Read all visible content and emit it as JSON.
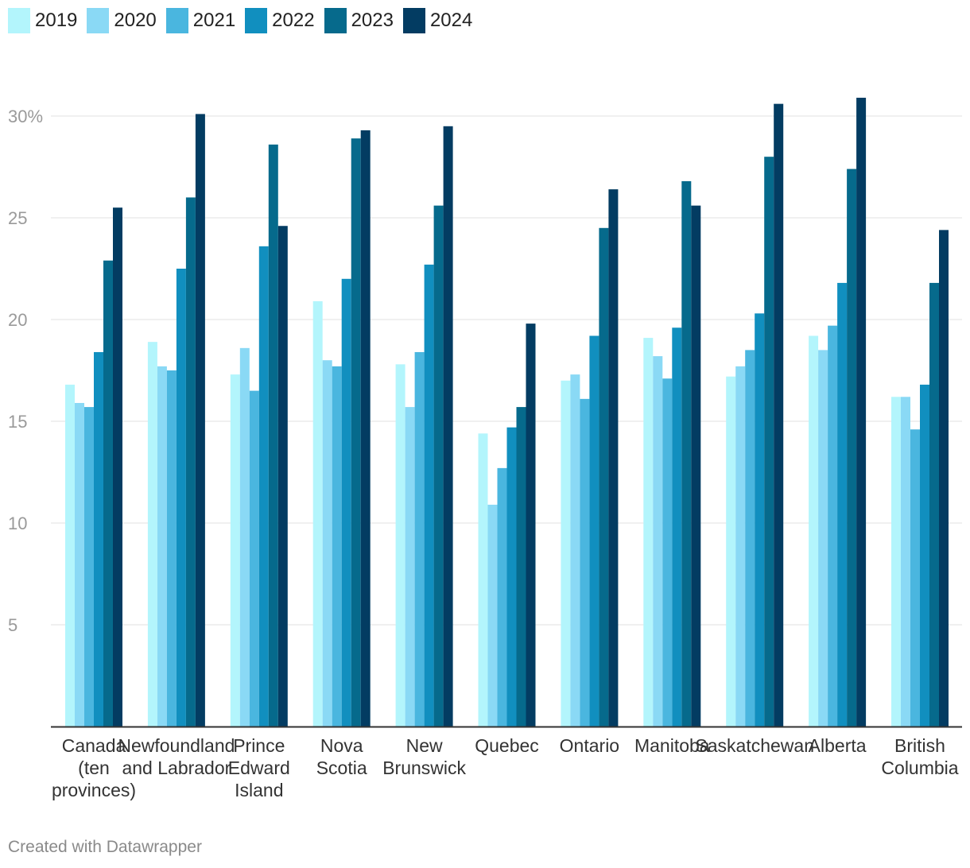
{
  "chart_data": {
    "type": "bar",
    "title": "",
    "xlabel": "",
    "ylabel": "",
    "ylim": [
      0,
      31
    ],
    "y_ticks": [
      {
        "value": 5,
        "label": "5"
      },
      {
        "value": 10,
        "label": "10"
      },
      {
        "value": 15,
        "label": "15"
      },
      {
        "value": 20,
        "label": "20"
      },
      {
        "value": 25,
        "label": "25"
      },
      {
        "value": 30,
        "label": "30%"
      }
    ],
    "categories": [
      [
        "Canada",
        "(ten",
        "provinces)"
      ],
      [
        "Newfoundland",
        "and Labrador"
      ],
      [
        "Prince",
        "Edward",
        "Island"
      ],
      [
        "Nova",
        "Scotia"
      ],
      [
        "New",
        "Brunswick"
      ],
      [
        "Quebec"
      ],
      [
        "Ontario"
      ],
      [
        "Manitoba"
      ],
      [
        "Saskatchewan"
      ],
      [
        "Alberta"
      ],
      [
        "British",
        "Columbia"
      ]
    ],
    "series": [
      {
        "name": "2019",
        "color": "#b3f5fc",
        "values": [
          16.8,
          18.9,
          17.3,
          20.9,
          17.8,
          14.4,
          17.0,
          19.1,
          17.2,
          19.2,
          16.2
        ]
      },
      {
        "name": "2020",
        "color": "#8ad9f5",
        "values": [
          15.9,
          17.7,
          18.6,
          18.0,
          15.7,
          10.9,
          17.3,
          18.2,
          17.7,
          18.5,
          16.2
        ]
      },
      {
        "name": "2021",
        "color": "#4ab6df",
        "values": [
          15.7,
          17.5,
          16.5,
          17.7,
          18.4,
          12.7,
          16.1,
          17.1,
          18.5,
          19.7,
          14.6
        ]
      },
      {
        "name": "2022",
        "color": "#118fbf",
        "values": [
          18.4,
          22.5,
          23.6,
          22.0,
          22.7,
          14.7,
          19.2,
          19.6,
          20.3,
          21.8,
          16.8
        ]
      },
      {
        "name": "2023",
        "color": "#066a8c",
        "values": [
          22.9,
          26.0,
          28.6,
          28.9,
          25.6,
          15.7,
          24.5,
          26.8,
          28.0,
          27.4,
          21.8
        ]
      },
      {
        "name": "2024",
        "color": "#033c62",
        "values": [
          25.5,
          30.1,
          24.6,
          29.3,
          29.5,
          19.8,
          26.4,
          25.6,
          30.6,
          30.9,
          24.4
        ]
      }
    ],
    "legend_position": "top-left",
    "grid": true
  },
  "footer": {
    "credit": "Created with Datawrapper"
  }
}
